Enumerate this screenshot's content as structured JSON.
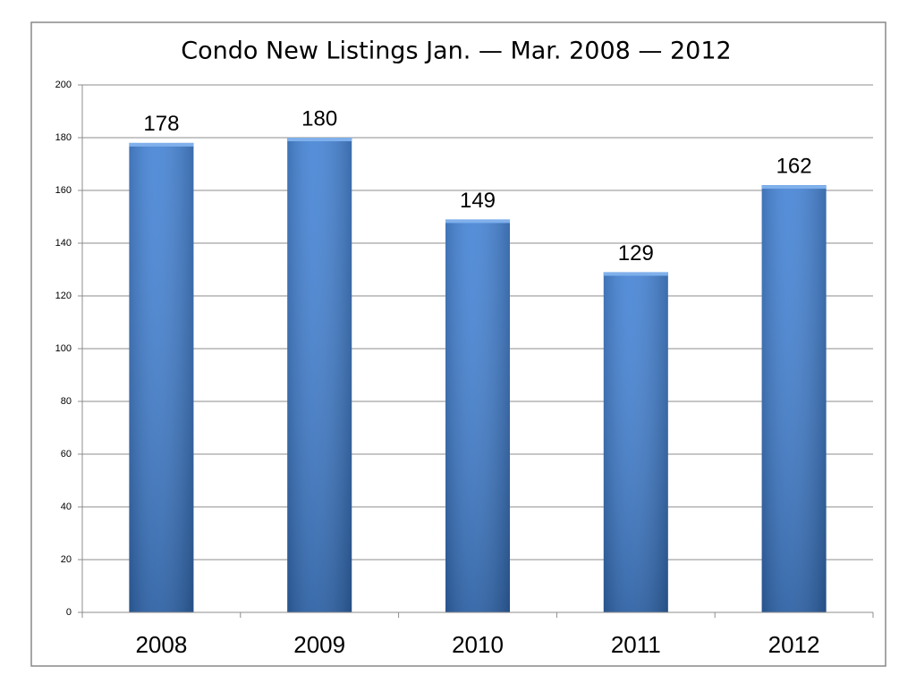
{
  "chart_data": {
    "type": "bar",
    "title": "Condo New Listings Jan. — Mar. 2008 — 2012",
    "categories": [
      "2008",
      "2009",
      "2010",
      "2011",
      "2012"
    ],
    "values": [
      178,
      180,
      149,
      129,
      162
    ],
    "color": "#3b7dd3",
    "ylim": [
      0,
      200
    ],
    "yticks": [
      0,
      20,
      40,
      60,
      80,
      100,
      120,
      140,
      160,
      180,
      200
    ],
    "grid": true
  }
}
